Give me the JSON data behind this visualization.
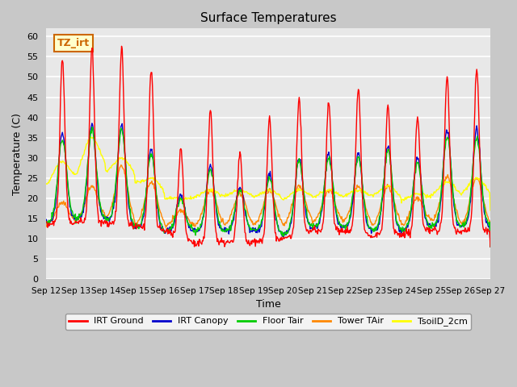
{
  "title": "Surface Temperatures",
  "xlabel": "Time",
  "ylabel": "Temperature (C)",
  "ylim": [
    0,
    62
  ],
  "yticks": [
    0,
    5,
    10,
    15,
    20,
    25,
    30,
    35,
    40,
    45,
    50,
    55,
    60
  ],
  "xlim": [
    0,
    360
  ],
  "xtick_labels": [
    "Sep 12",
    "Sep 13",
    "Sep 14",
    "Sep 15",
    "Sep 16",
    "Sep 17",
    "Sep 18",
    "Sep 19",
    "Sep 20",
    "Sep 21",
    "Sep 22",
    "Sep 23",
    "Sep 24",
    "Sep 25",
    "Sep 26",
    "Sep 27"
  ],
  "xtick_positions": [
    0,
    24,
    48,
    72,
    96,
    120,
    144,
    168,
    192,
    216,
    240,
    264,
    288,
    312,
    336,
    360
  ],
  "colors": {
    "IRT Ground": "#ff0000",
    "IRT Canopy": "#0000cc",
    "Floor Tair": "#00cc00",
    "Tower TAir": "#ff8800",
    "TsoilD_2cm": "#ffff00"
  },
  "annotation_text": "TZ_irt",
  "annotation_color": "#cc6600",
  "annotation_bg": "#ffffcc",
  "fig_bg": "#c8c8c8",
  "plot_bg": "#e8e8e8",
  "grid_color": "#ffffff",
  "irt_ground_peaks": [
    54,
    57,
    57,
    52,
    32,
    42,
    31,
    40,
    45,
    44,
    47,
    43,
    40,
    50,
    52
  ],
  "irt_canopy_peaks": [
    36,
    38,
    38,
    32,
    21,
    28,
    23,
    26,
    30,
    31,
    31,
    33,
    30,
    37,
    37
  ],
  "floor_tair_peaks": [
    35,
    37,
    37,
    31,
    20,
    27,
    22,
    25,
    29,
    30,
    30,
    32,
    29,
    35,
    35
  ],
  "tower_tair_peaks": [
    19,
    23,
    28,
    24,
    17,
    22,
    21,
    22,
    23,
    22,
    23,
    23,
    20,
    25,
    25
  ],
  "tsoil_peaks": [
    29,
    35,
    30,
    25,
    20,
    22,
    22,
    22,
    22,
    22,
    22,
    23,
    21,
    24,
    25
  ],
  "night_base_early": 13.5,
  "night_base_mid": 9.0,
  "night_base_late": 11.5,
  "tsoil_night_early": 22,
  "tsoil_night_mid": 20,
  "tsoil_night_late": 18
}
